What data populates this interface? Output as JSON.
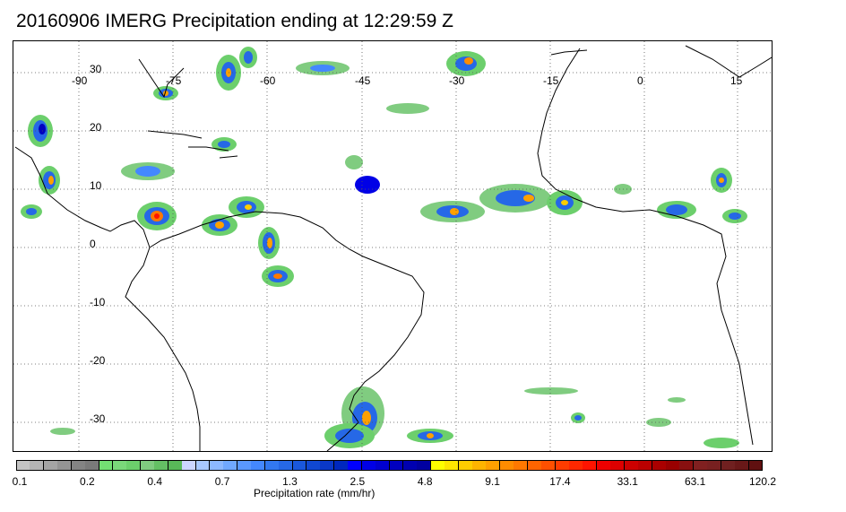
{
  "title": "20160906 IMERG Precipitation ending at 12:29:59 Z",
  "map": {
    "lon_labels": [
      "-90",
      "-75",
      "-60",
      "-45",
      "-30",
      "-15",
      "0",
      "15"
    ],
    "lat_labels": [
      "30",
      "20",
      "10",
      "0",
      "-10",
      "-20",
      "-30"
    ],
    "grid": "dotted",
    "land_color": "#ffffff",
    "coastline_color": "#000000"
  },
  "colorbar": {
    "title": "Precipitation rate (mm/hr)",
    "tick_labels": [
      "0.1",
      "0.2",
      "0.4",
      "0.7",
      "1.3",
      "2.5",
      "4.8",
      "9.1",
      "17.4",
      "33.1",
      "63.1",
      "120.2"
    ],
    "colors": [
      "#c4c4c4",
      "#b4b4b4",
      "#a4a4a4",
      "#949494",
      "#848484",
      "#7a7a7a",
      "#73e073",
      "#7ad87a",
      "#6ccf6c",
      "#80cc80",
      "#64c064",
      "#58b858",
      "#ccd6ff",
      "#a8c8ff",
      "#8cb8ff",
      "#70a8ff",
      "#5a98ff",
      "#4488ff",
      "#3278f0",
      "#2668e6",
      "#1a58dc",
      "#1048d2",
      "#0a38c8",
      "#0028be",
      "#0000ff",
      "#0000e6",
      "#0000d0",
      "#0000c0",
      "#0000b0",
      "#0000a0",
      "#ffff00",
      "#ffe600",
      "#ffcc00",
      "#ffb400",
      "#ffa000",
      "#ff8c00",
      "#ff7800",
      "#ff6400",
      "#ff5000",
      "#ff3c00",
      "#ff2800",
      "#ff1400",
      "#ee0000",
      "#dd0000",
      "#cc0000",
      "#bb0000",
      "#aa0000",
      "#990000",
      "#881010",
      "#802020",
      "#782020",
      "#702020",
      "#681818",
      "#601010"
    ]
  }
}
